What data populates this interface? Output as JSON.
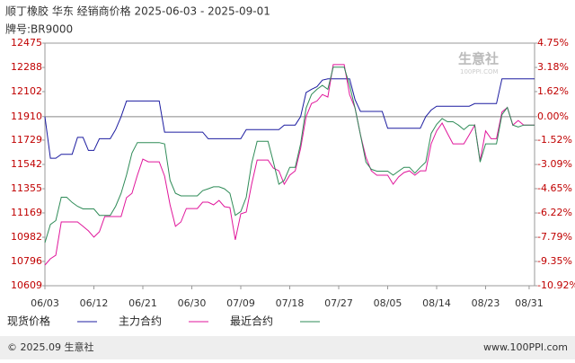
{
  "chart_data": {
    "type": "line",
    "title": "顺丁橡胶 华东 经销商价格 2025-06-03 - 2025-09-01",
    "subtitle": "牌号:BR9000",
    "categories": [
      "06/03",
      null,
      null,
      null,
      null,
      null,
      null,
      null,
      null,
      "06/12",
      null,
      null,
      null,
      null,
      null,
      null,
      null,
      null,
      "06/21",
      null,
      null,
      null,
      null,
      null,
      null,
      null,
      null,
      "06/30",
      null,
      null,
      null,
      null,
      null,
      null,
      null,
      null,
      "07/09",
      null,
      null,
      null,
      null,
      null,
      null,
      null,
      null,
      "07/18",
      null,
      null,
      null,
      null,
      null,
      null,
      null,
      null,
      "07/27",
      null,
      null,
      null,
      null,
      null,
      null,
      null,
      null,
      "08/05",
      null,
      null,
      null,
      null,
      null,
      null,
      null,
      null,
      "08/14",
      null,
      null,
      null,
      null,
      null,
      null,
      null,
      null,
      "08/23",
      null,
      null,
      null,
      null,
      null,
      null,
      null,
      "08/31",
      null
    ],
    "series": [
      {
        "name": "现货价格",
        "color": "#1c1ca0",
        "values": [
          11910,
          11590,
          11590,
          11620,
          11620,
          11620,
          11750,
          11750,
          11650,
          11650,
          11740,
          11740,
          11740,
          11810,
          11910,
          12030,
          12030,
          12030,
          12030,
          12030,
          12030,
          12030,
          11790,
          11790,
          11790,
          11790,
          11790,
          11790,
          11790,
          11790,
          11740,
          11740,
          11740,
          11740,
          11740,
          11740,
          11740,
          11810,
          11810,
          11810,
          11810,
          11810,
          11810,
          11810,
          11845,
          11845,
          11845,
          11910,
          12095,
          12120,
          12140,
          12190,
          12200,
          12200,
          12200,
          12200,
          12200,
          12040,
          11950,
          11950,
          11950,
          11950,
          11950,
          11820,
          11820,
          11820,
          11820,
          11820,
          11820,
          11820,
          11910,
          11960,
          11990,
          11990,
          11990,
          11990,
          11990,
          11990,
          11990,
          12010,
          12010,
          12010,
          12010,
          12010,
          12200,
          12200,
          12200,
          12200,
          12200,
          12200,
          12200
        ]
      },
      {
        "name": "主力合约",
        "color": "#e0169b",
        "values": [
          10768,
          10816,
          10843,
          11100,
          11100,
          11100,
          11100,
          11066,
          11031,
          10983,
          11024,
          11141,
          11141,
          11141,
          11141,
          11286,
          11320,
          11459,
          11583,
          11562,
          11562,
          11562,
          11452,
          11231,
          11066,
          11100,
          11203,
          11203,
          11203,
          11252,
          11252,
          11231,
          11265,
          11217,
          11210,
          10962,
          11162,
          11176,
          11390,
          11576,
          11576,
          11576,
          11514,
          11493,
          11390,
          11459,
          11493,
          11666,
          11910,
          12010,
          12030,
          12080,
          12060,
          12310,
          12310,
          12310,
          12080,
          11975,
          11770,
          11597,
          11493,
          11459,
          11459,
          11459,
          11390,
          11445,
          11480,
          11493,
          11459,
          11493,
          11493,
          11700,
          11800,
          11860,
          11780,
          11700,
          11700,
          11700,
          11770,
          11845,
          11570,
          11800,
          11740,
          11740,
          11945,
          11980,
          11845,
          11880,
          11845,
          11845,
          11845
        ]
      },
      {
        "name": "最近合约",
        "color": "#2e8b57",
        "values": [
          10940,
          11080,
          11110,
          11290,
          11290,
          11250,
          11220,
          11200,
          11200,
          11200,
          11150,
          11150,
          11150,
          11220,
          11320,
          11460,
          11630,
          11710,
          11710,
          11710,
          11710,
          11710,
          11700,
          11420,
          11320,
          11300,
          11300,
          11300,
          11300,
          11340,
          11355,
          11370,
          11370,
          11355,
          11320,
          11150,
          11180,
          11290,
          11550,
          11720,
          11720,
          11720,
          11560,
          11390,
          11420,
          11520,
          11520,
          11700,
          11975,
          12080,
          12120,
          12150,
          12120,
          12290,
          12290,
          12290,
          12150,
          11975,
          11770,
          11560,
          11505,
          11490,
          11490,
          11490,
          11460,
          11490,
          11520,
          11520,
          11475,
          11520,
          11560,
          11780,
          11850,
          11895,
          11870,
          11870,
          11845,
          11810,
          11845,
          11845,
          11560,
          11700,
          11700,
          11700,
          11925,
          11980,
          11845,
          11830,
          11845,
          11845,
          11845
        ]
      }
    ],
    "ylim": [
      10609,
      12475
    ],
    "yticks": [
      10609,
      10796,
      10982,
      11169,
      11355,
      11542,
      11729,
      11910,
      12102,
      12288,
      12475
    ],
    "y2lim": [
      -10.92,
      4.75
    ],
    "y2ticks": [
      {
        "value": -10.92,
        "label": "-10.92%"
      },
      {
        "value": -9.35,
        "label": "-9.35%"
      },
      {
        "value": -7.79,
        "label": "-7.79%"
      },
      {
        "value": -6.22,
        "label": "-6.22%"
      },
      {
        "value": -4.65,
        "label": "-4.65%"
      },
      {
        "value": -3.09,
        "label": "-3.09%"
      },
      {
        "value": -1.52,
        "label": "-1.52%"
      },
      {
        "value": 0,
        "label": "0.00%"
      },
      {
        "value": 1.62,
        "label": "1.62%"
      },
      {
        "value": 3.18,
        "label": "3.18%"
      },
      {
        "value": 4.75,
        "label": "4.75%"
      }
    ],
    "zero_line": true,
    "watermark": "生意社",
    "watermark_url": "100PPI.COM",
    "footer_left": "© 2025.09 生意社",
    "footer_right": "www.100PPI.com"
  }
}
